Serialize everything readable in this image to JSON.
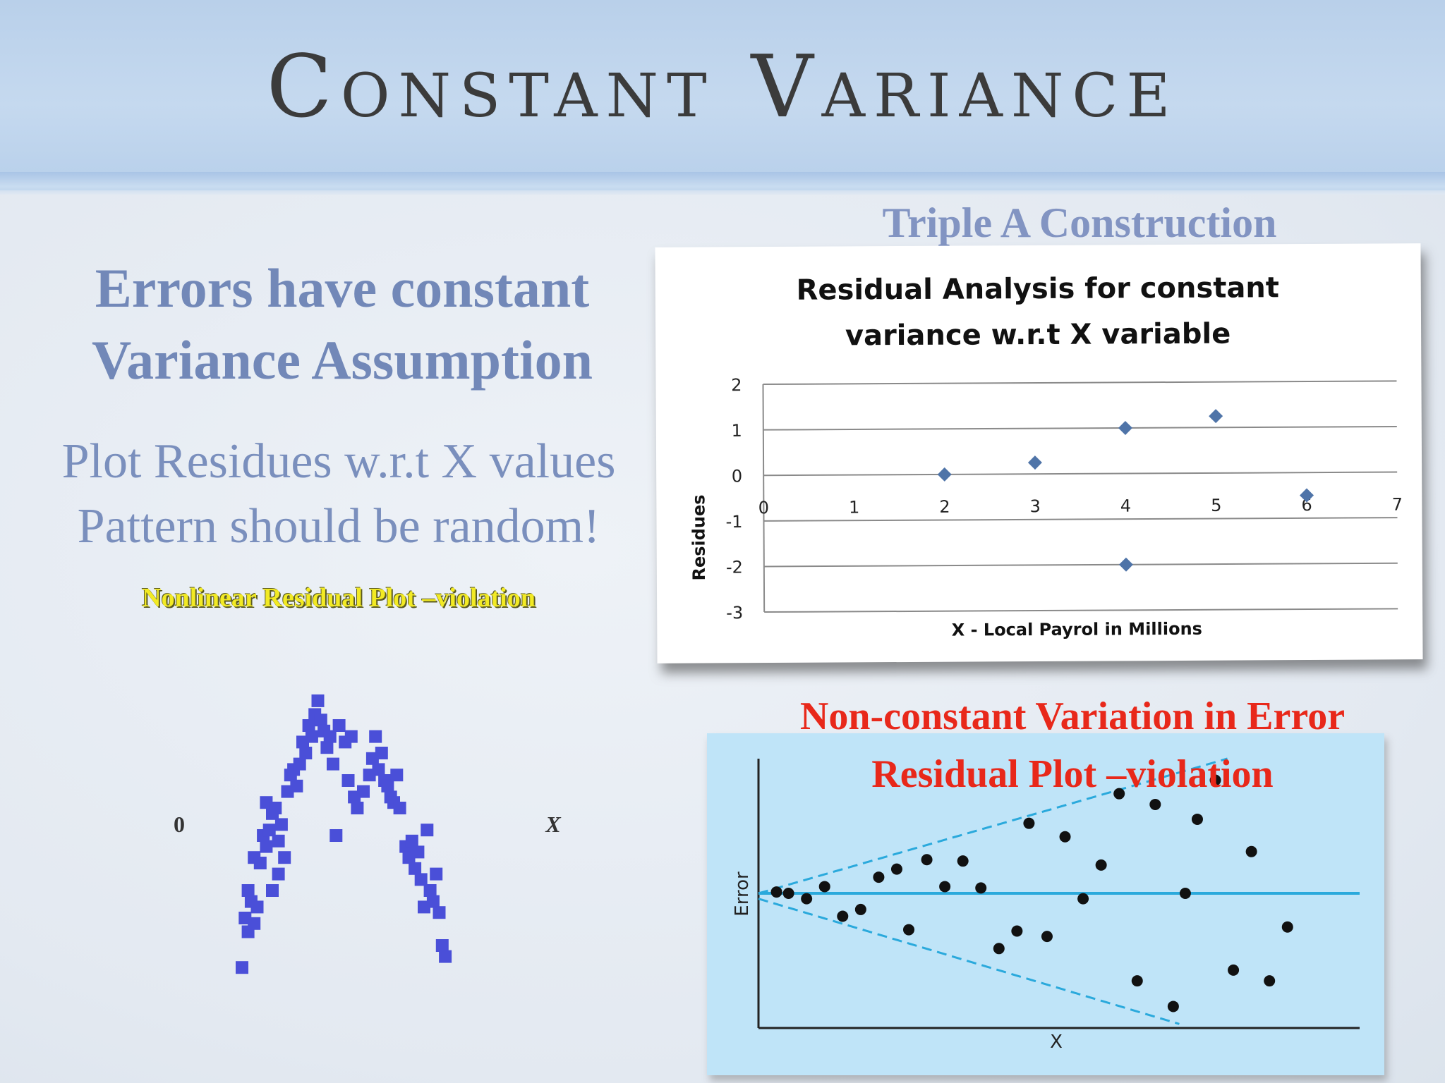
{
  "slide": {
    "title": "Constant Variance",
    "heading_lines": [
      "Errors have constant",
      "Variance Assumption"
    ],
    "body_lines": [
      "Plot Residues w.r.t X values",
      "Pattern should be random!"
    ],
    "nonlinear_caption": "Nonlinear Residual Plot –violation",
    "chart1_caption": "Triple A Construction",
    "red_caption_lines": [
      "Non-constant Variation in Error",
      "Residual Plot –violation"
    ],
    "colors": {
      "title": "#3b3b3b",
      "heading": "#7288b8",
      "body": "#7a8fbd",
      "yellow_caption": "#f2ea24",
      "red_caption": "#e8281a",
      "scatter_blue": "#4a4fd8",
      "diamond_blue": "#4f74a8",
      "funnel_bg": "#bfe4f8",
      "funnel_line": "#2aa9dc"
    }
  },
  "chart_data": [
    {
      "type": "scatter",
      "title": "Residual Analysis for constant variance w.r.t X variable",
      "xlabel": "X - Local Payrol in Millions",
      "ylabel": "Residues",
      "xlim": [
        0,
        7
      ],
      "ylim": [
        -3,
        2
      ],
      "x_ticks": [
        "0",
        "1",
        "2",
        "3",
        "4",
        "5",
        "6",
        "7"
      ],
      "y_ticks": [
        "2",
        "1",
        "0",
        "-1",
        "-2",
        "-3"
      ],
      "grid": true,
      "marker": "diamond",
      "points": [
        {
          "x": 2,
          "y": 0
        },
        {
          "x": 3,
          "y": 0.25
        },
        {
          "x": 4,
          "y": 1
        },
        {
          "x": 4,
          "y": -2
        },
        {
          "x": 5,
          "y": 1.25
        },
        {
          "x": 6,
          "y": -0.5
        }
      ]
    },
    {
      "type": "scatter",
      "xlabel": "X",
      "origin_label": "0",
      "marker": "square",
      "xlim": [
        0,
        1
      ],
      "ylim": [
        0,
        1
      ],
      "points": [
        {
          "x": 0.1,
          "y": 0.02
        },
        {
          "x": 0.11,
          "y": 0.2
        },
        {
          "x": 0.12,
          "y": 0.15
        },
        {
          "x": 0.13,
          "y": 0.26
        },
        {
          "x": 0.12,
          "y": 0.3
        },
        {
          "x": 0.14,
          "y": 0.18
        },
        {
          "x": 0.15,
          "y": 0.24
        },
        {
          "x": 0.14,
          "y": 0.42
        },
        {
          "x": 0.16,
          "y": 0.4
        },
        {
          "x": 0.17,
          "y": 0.5
        },
        {
          "x": 0.18,
          "y": 0.46
        },
        {
          "x": 0.19,
          "y": 0.52
        },
        {
          "x": 0.18,
          "y": 0.62
        },
        {
          "x": 0.2,
          "y": 0.58
        },
        {
          "x": 0.21,
          "y": 0.6
        },
        {
          "x": 0.22,
          "y": 0.48
        },
        {
          "x": 0.23,
          "y": 0.54
        },
        {
          "x": 0.24,
          "y": 0.42
        },
        {
          "x": 0.22,
          "y": 0.36
        },
        {
          "x": 0.2,
          "y": 0.3
        },
        {
          "x": 0.25,
          "y": 0.66
        },
        {
          "x": 0.26,
          "y": 0.72
        },
        {
          "x": 0.27,
          "y": 0.74
        },
        {
          "x": 0.28,
          "y": 0.68
        },
        {
          "x": 0.29,
          "y": 0.76
        },
        {
          "x": 0.3,
          "y": 0.84
        },
        {
          "x": 0.31,
          "y": 0.8
        },
        {
          "x": 0.32,
          "y": 0.9
        },
        {
          "x": 0.33,
          "y": 0.86
        },
        {
          "x": 0.34,
          "y": 0.94
        },
        {
          "x": 0.35,
          "y": 0.99
        },
        {
          "x": 0.36,
          "y": 0.92
        },
        {
          "x": 0.37,
          "y": 0.88
        },
        {
          "x": 0.38,
          "y": 0.82
        },
        {
          "x": 0.39,
          "y": 0.86
        },
        {
          "x": 0.4,
          "y": 0.76
        },
        {
          "x": 0.41,
          "y": 0.5
        },
        {
          "x": 0.42,
          "y": 0.9
        },
        {
          "x": 0.44,
          "y": 0.84
        },
        {
          "x": 0.46,
          "y": 0.86
        },
        {
          "x": 0.45,
          "y": 0.7
        },
        {
          "x": 0.47,
          "y": 0.64
        },
        {
          "x": 0.48,
          "y": 0.6
        },
        {
          "x": 0.5,
          "y": 0.66
        },
        {
          "x": 0.52,
          "y": 0.72
        },
        {
          "x": 0.53,
          "y": 0.78
        },
        {
          "x": 0.54,
          "y": 0.86
        },
        {
          "x": 0.55,
          "y": 0.74
        },
        {
          "x": 0.56,
          "y": 0.8
        },
        {
          "x": 0.57,
          "y": 0.7
        },
        {
          "x": 0.58,
          "y": 0.68
        },
        {
          "x": 0.59,
          "y": 0.64
        },
        {
          "x": 0.6,
          "y": 0.62
        },
        {
          "x": 0.61,
          "y": 0.72
        },
        {
          "x": 0.62,
          "y": 0.6
        },
        {
          "x": 0.64,
          "y": 0.46
        },
        {
          "x": 0.65,
          "y": 0.42
        },
        {
          "x": 0.66,
          "y": 0.48
        },
        {
          "x": 0.67,
          "y": 0.38
        },
        {
          "x": 0.68,
          "y": 0.44
        },
        {
          "x": 0.69,
          "y": 0.34
        },
        {
          "x": 0.7,
          "y": 0.24
        },
        {
          "x": 0.71,
          "y": 0.52
        },
        {
          "x": 0.72,
          "y": 0.3
        },
        {
          "x": 0.73,
          "y": 0.26
        },
        {
          "x": 0.74,
          "y": 0.36
        },
        {
          "x": 0.75,
          "y": 0.22
        },
        {
          "x": 0.76,
          "y": 0.1
        },
        {
          "x": 0.77,
          "y": 0.06
        }
      ]
    },
    {
      "type": "scatter",
      "xlabel": "X",
      "ylabel": "Error",
      "xlim": [
        0,
        1
      ],
      "ylim": [
        -1,
        1
      ],
      "reference_line_y": 0,
      "funnel": {
        "upper": [
          [
            0,
            0
          ],
          [
            0.78,
            1
          ]
        ],
        "lower": [
          [
            0,
            -0.04
          ],
          [
            0.7,
            -0.97
          ]
        ]
      },
      "marker": "circle",
      "points": [
        {
          "x": 0.03,
          "y": 0.01
        },
        {
          "x": 0.05,
          "y": 0.0
        },
        {
          "x": 0.08,
          "y": -0.04
        },
        {
          "x": 0.11,
          "y": 0.05
        },
        {
          "x": 0.14,
          "y": -0.17
        },
        {
          "x": 0.17,
          "y": -0.12
        },
        {
          "x": 0.2,
          "y": 0.12
        },
        {
          "x": 0.23,
          "y": 0.18
        },
        {
          "x": 0.25,
          "y": -0.27
        },
        {
          "x": 0.28,
          "y": 0.25
        },
        {
          "x": 0.31,
          "y": 0.05
        },
        {
          "x": 0.34,
          "y": 0.24
        },
        {
          "x": 0.37,
          "y": 0.04
        },
        {
          "x": 0.4,
          "y": -0.41
        },
        {
          "x": 0.43,
          "y": -0.28
        },
        {
          "x": 0.45,
          "y": 0.52
        },
        {
          "x": 0.48,
          "y": -0.32
        },
        {
          "x": 0.51,
          "y": 0.42
        },
        {
          "x": 0.54,
          "y": -0.04
        },
        {
          "x": 0.57,
          "y": 0.21
        },
        {
          "x": 0.6,
          "y": 0.74
        },
        {
          "x": 0.63,
          "y": -0.65
        },
        {
          "x": 0.66,
          "y": 0.66
        },
        {
          "x": 0.69,
          "y": -0.84
        },
        {
          "x": 0.71,
          "y": 0.0
        },
        {
          "x": 0.73,
          "y": 0.55
        },
        {
          "x": 0.79,
          "y": -0.57
        },
        {
          "x": 0.82,
          "y": 0.31
        },
        {
          "x": 0.85,
          "y": -0.65
        },
        {
          "x": 0.88,
          "y": -0.25
        },
        {
          "x": 0.76,
          "y": 0.84
        }
      ]
    }
  ]
}
